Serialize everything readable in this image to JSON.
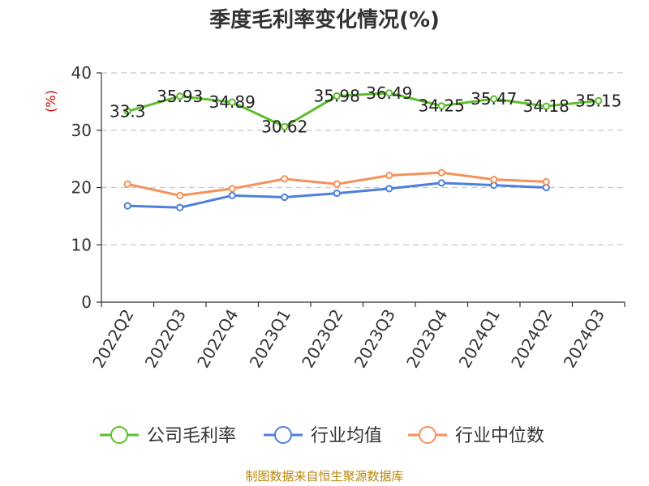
{
  "chart_data": {
    "type": "line",
    "title": "季度毛利率变化情况(%)",
    "xlabel": "",
    "ylabel": "(%)",
    "ylim": [
      0,
      40
    ],
    "yticks": [
      0,
      10,
      20,
      30,
      40
    ],
    "grid": true,
    "legend_position": "bottom",
    "categories": [
      "2022Q2",
      "2022Q3",
      "2022Q4",
      "2023Q1",
      "2023Q2",
      "2023Q3",
      "2023Q4",
      "2024Q1",
      "2024Q2",
      "2024Q3"
    ],
    "series": [
      {
        "name": "公司毛利率",
        "color": "#5cbf2a",
        "values": [
          33.3,
          35.93,
          34.89,
          30.62,
          35.98,
          36.49,
          34.25,
          35.47,
          34.18,
          35.15
        ],
        "labels": [
          "33.3",
          "35.93",
          "34.89",
          "30.62",
          "35.98",
          "36.49",
          "34.25",
          "35.47",
          "34.18",
          "35.15"
        ]
      },
      {
        "name": "行业均值",
        "color": "#4f7fdc",
        "values": [
          16.8,
          16.5,
          18.6,
          18.3,
          19.0,
          19.8,
          20.8,
          20.4,
          20.0,
          null
        ]
      },
      {
        "name": "行业中位数",
        "color": "#f5915a",
        "values": [
          20.6,
          18.6,
          19.8,
          21.5,
          20.6,
          22.1,
          22.6,
          21.4,
          21.0,
          null
        ]
      }
    ],
    "source": "制图数据来自恒生聚源数据库"
  }
}
